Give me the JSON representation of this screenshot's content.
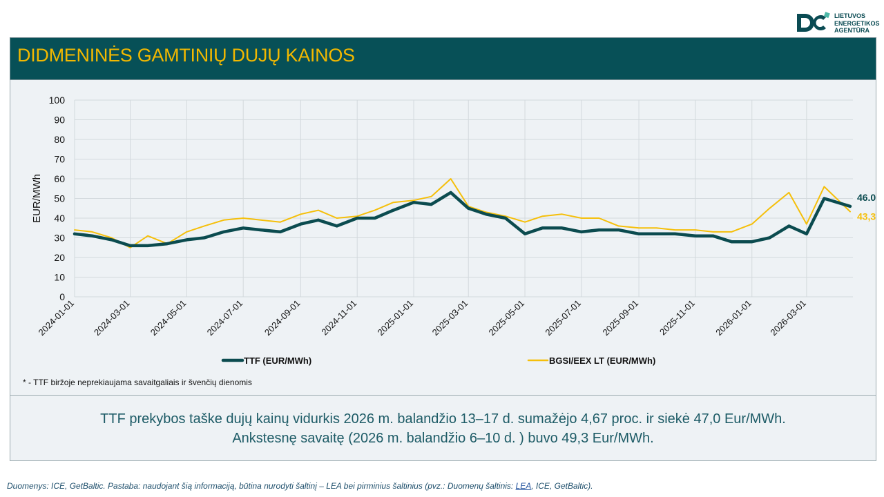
{
  "logo": {
    "lines": [
      "LIETUVOS",
      "ENERGETIKOS",
      "AGENTŪRA"
    ]
  },
  "header": {
    "title": "DIDMENINĖS GAMTINIŲ DUJŲ KAINOS"
  },
  "note": "* - TTF biržoje neprekiaujama savaitgaliais ir švenčių dienomis",
  "summary": {
    "line1": "TTF prekybos taške dujų kainų vidurkis 2026 m. balandžio 13–17 d. sumažėjo 4,67 proc. ir siekė 47,0 Eur/MWh.",
    "line2": "Ankstesnę savaitę (2026 m. balandžio 6–10 d. ) buvo 49,3 Eur/MWh."
  },
  "footer": {
    "before": "Duomenys: ICE, GetBaltic. Pastaba: naudojant šią informaciją, būtina nurodyti šaltinį – LEA bei pirminius šaltinius (pvz.: Duomenų šaltinis: ",
    "link": "LEA",
    "after": ", ICE, GetBaltic)."
  },
  "colors": {
    "header_bg": "#075057",
    "title": "#f2b800",
    "ttf": "#0b4b4f",
    "bgsi": "#f5bf0a",
    "grid": "#d3d9dd"
  },
  "chart_data": {
    "type": "line",
    "title": "",
    "xlabel": "",
    "ylabel": "EUR/MWh",
    "ylim": [
      0,
      100
    ],
    "yticks": [
      "0",
      "10",
      "20",
      "30",
      "40",
      "50",
      "60",
      "70",
      "80",
      "90",
      "100"
    ],
    "xticks": [
      "2024-01-01",
      "2024-03-01",
      "2024-05-01",
      "2024-07-01",
      "2024-09-01",
      "2024-11-01",
      "2025-01-01",
      "2025-03-01",
      "2025-05-01",
      "2025-07-01",
      "2025-09-01",
      "2025-11-01",
      "2026-01-01",
      "2026-03-01"
    ],
    "grid": true,
    "legend": "bottom",
    "x": [
      "2024-01-01",
      "2024-01-20",
      "2024-02-10",
      "2024-03-01",
      "2024-03-20",
      "2024-04-10",
      "2024-05-01",
      "2024-05-20",
      "2024-06-10",
      "2024-07-01",
      "2024-07-20",
      "2024-08-10",
      "2024-09-01",
      "2024-09-20",
      "2024-10-10",
      "2024-11-01",
      "2024-11-20",
      "2024-12-10",
      "2025-01-01",
      "2025-01-20",
      "2025-02-10",
      "2025-03-01",
      "2025-03-20",
      "2025-04-10",
      "2025-05-01",
      "2025-05-20",
      "2025-06-10",
      "2025-07-01",
      "2025-07-20",
      "2025-08-10",
      "2025-09-01",
      "2025-09-20",
      "2025-10-10",
      "2025-11-01",
      "2025-11-20",
      "2025-12-10",
      "2026-01-01",
      "2026-01-20",
      "2026-02-10",
      "2026-03-01",
      "2026-03-20",
      "2026-04-17"
    ],
    "series": [
      {
        "name": "TTF (EUR/MWh)",
        "end_label": "46.0",
        "values": [
          32,
          31,
          29,
          26,
          26,
          27,
          29,
          30,
          33,
          35,
          34,
          33,
          37,
          39,
          36,
          40,
          40,
          44,
          48,
          47,
          53,
          45,
          42,
          40,
          32,
          35,
          35,
          33,
          34,
          34,
          32,
          32,
          32,
          31,
          31,
          28,
          28,
          30,
          36,
          32,
          50,
          46
        ]
      },
      {
        "name": "BGSI/EEX LT (EUR/MWh)",
        "end_label": "43,3",
        "values": [
          34,
          33,
          30,
          25,
          31,
          27,
          33,
          36,
          39,
          40,
          39,
          38,
          42,
          44,
          40,
          41,
          44,
          48,
          49,
          51,
          60,
          46,
          43,
          41,
          38,
          41,
          42,
          40,
          40,
          36,
          35,
          35,
          34,
          34,
          33,
          33,
          37,
          45,
          53,
          37,
          56,
          43.3
        ]
      }
    ]
  }
}
